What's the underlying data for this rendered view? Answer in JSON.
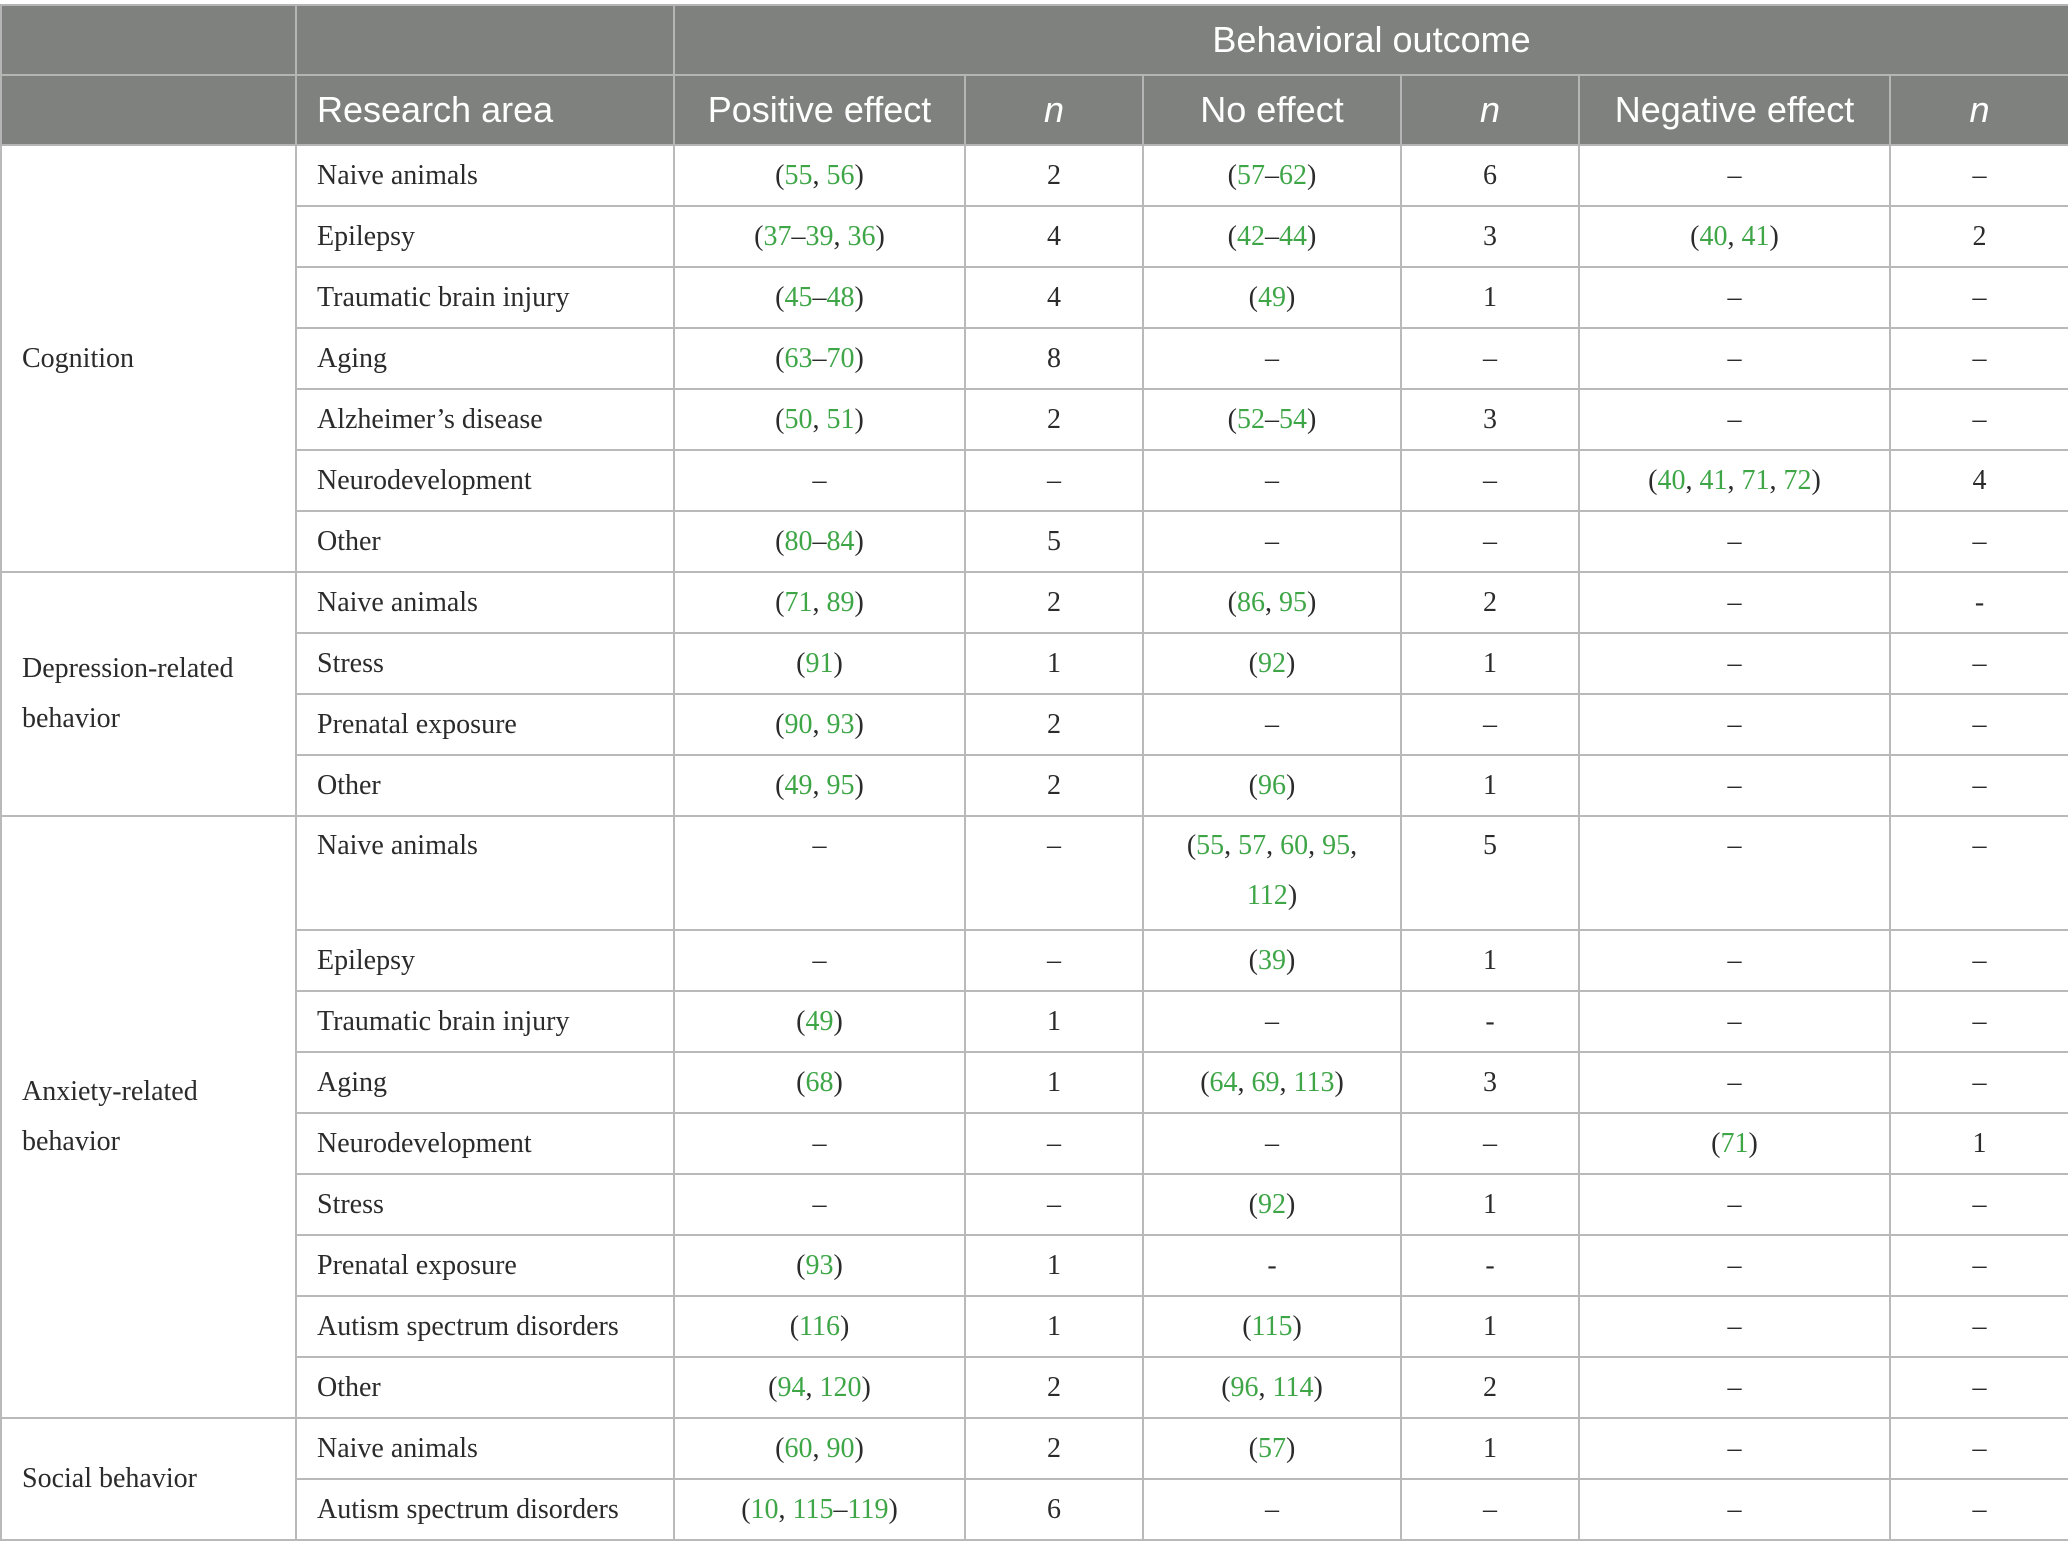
{
  "header": {
    "group_title": "Behavioral outcome",
    "research_area": "Research area",
    "positive_effect": "Positive effect",
    "n1": "n",
    "no_effect": "No effect",
    "n2": "n",
    "negative_effect": "Negative effect",
    "n3": "n"
  },
  "colors": {
    "header_bg": "#7f817f",
    "reference": "#3fa648"
  },
  "groups": [
    {
      "category": "Cognition",
      "rows": [
        {
          "area": "Naive animals",
          "pos": [
            [
              "55"
            ],
            ", ",
            [
              "56"
            ]
          ],
          "n1": "2",
          "no": [
            [
              "57"
            ],
            "–",
            [
              "62"
            ]
          ],
          "n2": "6",
          "neg": "–",
          "n3": "–"
        },
        {
          "area": "Epilepsy",
          "pos": [
            [
              "37"
            ],
            "–",
            [
              "39"
            ],
            ", ",
            [
              "36"
            ]
          ],
          "n1": "4",
          "no": [
            [
              "42"
            ],
            "–",
            [
              "44"
            ]
          ],
          "n2": "3",
          "neg": [
            [
              "40"
            ],
            ", ",
            [
              "41"
            ]
          ],
          "n3": "2"
        },
        {
          "area": "Traumatic brain injury",
          "pos": [
            [
              "45"
            ],
            "–",
            [
              "48"
            ]
          ],
          "n1": "4",
          "no": [
            [
              "49"
            ]
          ],
          "n2": "1",
          "neg": "–",
          "n3": "–"
        },
        {
          "area": "Aging",
          "pos": [
            [
              "63"
            ],
            "–",
            [
              "70"
            ]
          ],
          "n1": "8",
          "no": "–",
          "n2": "–",
          "neg": "–",
          "n3": "–"
        },
        {
          "area": "Alzheimer’s disease",
          "pos": [
            [
              "50"
            ],
            ", ",
            [
              "51"
            ]
          ],
          "n1": "2",
          "no": [
            [
              "52"
            ],
            "–",
            [
              "54"
            ]
          ],
          "n2": "3",
          "neg": "–",
          "n3": "–"
        },
        {
          "area": "Neurodevelopment",
          "pos": "–",
          "n1": "–",
          "no": "–",
          "n2": "–",
          "neg": [
            [
              "40"
            ],
            ", ",
            [
              "41"
            ],
            ", ",
            [
              "71"
            ],
            ", ",
            [
              "72"
            ]
          ],
          "n3": "4"
        },
        {
          "area": "Other",
          "pos": [
            [
              "80"
            ],
            "–",
            [
              "84"
            ]
          ],
          "n1": "5",
          "no": "–",
          "n2": "–",
          "neg": "–",
          "n3": "–"
        }
      ]
    },
    {
      "category": "Depression-related behavior",
      "rows": [
        {
          "area": "Naive animals",
          "pos": [
            [
              "71"
            ],
            ", ",
            [
              "89"
            ]
          ],
          "n1": "2",
          "no": [
            [
              "86"
            ],
            ", ",
            [
              "95"
            ]
          ],
          "n2": "2",
          "neg": "–",
          "n3": "-"
        },
        {
          "area": "Stress",
          "pos": [
            [
              "91"
            ]
          ],
          "n1": "1",
          "no": [
            [
              "92"
            ]
          ],
          "n2": "1",
          "neg": "–",
          "n3": "–"
        },
        {
          "area": "Prenatal exposure",
          "pos": [
            [
              "90"
            ],
            ", ",
            [
              "93"
            ]
          ],
          "n1": "2",
          "no": "–",
          "n2": "–",
          "neg": "–",
          "n3": "–"
        },
        {
          "area": "Other",
          "pos": [
            [
              "49"
            ],
            ", ",
            [
              "95"
            ]
          ],
          "n1": "2",
          "no": [
            [
              "96"
            ]
          ],
          "n2": "1",
          "neg": "–",
          "n3": "–"
        }
      ]
    },
    {
      "category": "Anxiety-related behavior",
      "rows": [
        {
          "area": "Naive animals",
          "pos": "–",
          "n1": "–",
          "no": [
            [
              "55"
            ],
            ", ",
            [
              "57"
            ],
            ", ",
            [
              "60"
            ],
            ", ",
            [
              "95"
            ],
            ", ",
            [
              "112"
            ]
          ],
          "n2": "5",
          "neg": "–",
          "n3": "–",
          "tall": true
        },
        {
          "area": "Epilepsy",
          "pos": "–",
          "n1": "–",
          "no": [
            [
              "39"
            ]
          ],
          "n2": "1",
          "neg": "–",
          "n3": "–"
        },
        {
          "area": "Traumatic brain injury",
          "pos": [
            [
              "49"
            ]
          ],
          "n1": "1",
          "no": "–",
          "n2": "-",
          "neg": "–",
          "n3": "–"
        },
        {
          "area": "Aging",
          "pos": [
            [
              "68"
            ]
          ],
          "n1": "1",
          "no": [
            [
              "64"
            ],
            ", ",
            [
              "69"
            ],
            ", ",
            [
              "113"
            ]
          ],
          "n2": "3",
          "neg": "–",
          "n3": "–"
        },
        {
          "area": "Neurodevelopment",
          "pos": "–",
          "n1": "–",
          "no": "–",
          "n2": "–",
          "neg": [
            [
              "71"
            ]
          ],
          "n3": "1"
        },
        {
          "area": "Stress",
          "pos": "–",
          "n1": "–",
          "no": [
            [
              "92"
            ]
          ],
          "n2": "1",
          "neg": "–",
          "n3": "–"
        },
        {
          "area": "Prenatal exposure",
          "pos": [
            [
              "93"
            ]
          ],
          "n1": "1",
          "no": "-",
          "n2": "-",
          "neg": "–",
          "n3": "–"
        },
        {
          "area": "Autism spectrum disorders",
          "pos": [
            [
              "116"
            ]
          ],
          "n1": "1",
          "no": [
            [
              "115"
            ]
          ],
          "n2": "1",
          "neg": "–",
          "n3": "–"
        },
        {
          "area": "Other",
          "pos": [
            [
              "94"
            ],
            ", ",
            [
              "120"
            ]
          ],
          "n1": "2",
          "no": [
            [
              "96"
            ],
            ", ",
            [
              "114"
            ]
          ],
          "n2": "2",
          "neg": "–",
          "n3": "–"
        }
      ]
    },
    {
      "category": "Social behavior",
      "rows": [
        {
          "area": "Naive animals",
          "pos": [
            [
              "60"
            ],
            ", ",
            [
              "90"
            ]
          ],
          "n1": "2",
          "no": [
            [
              "57"
            ]
          ],
          "n2": "1",
          "neg": "–",
          "n3": "–"
        },
        {
          "area": "Autism spectrum disorders",
          "pos": [
            [
              "10"
            ],
            ", ",
            [
              "115"
            ],
            "–",
            [
              "119"
            ]
          ],
          "n1": "6",
          "no": "–",
          "n2": "–",
          "neg": "–",
          "n3": "–"
        }
      ]
    }
  ]
}
